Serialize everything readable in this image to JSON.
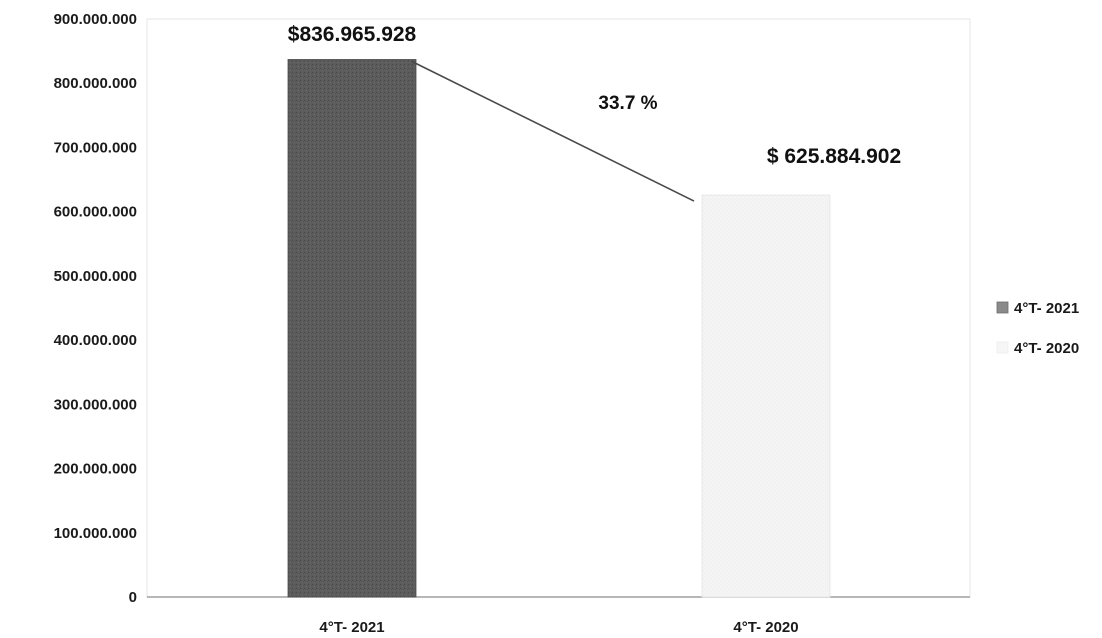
{
  "chart_data": {
    "type": "bar",
    "categories": [
      "4°T- 2021",
      "4°T- 2020"
    ],
    "values": [
      836965928,
      625884902
    ],
    "data_labels": [
      "$836.965.928",
      "$ 625.884.902"
    ],
    "y_ticks": [
      "0",
      "100.000.000",
      "200.000.000",
      "300.000.000",
      "400.000.000",
      "500.000.000",
      "600.000.000",
      "700.000.000",
      "800.000.000",
      "900.000.000"
    ],
    "ylim": [
      0,
      900000000
    ],
    "annotation": {
      "text": "33.7 %",
      "type": "connector-line",
      "from_category": "4°T- 2021",
      "to_category": "4°T- 2020"
    },
    "legend": {
      "placement": "right",
      "entries": [
        {
          "label": "4°T- 2021",
          "color": "#5a5a5a"
        },
        {
          "label": "4°T- 2020",
          "color": "#f3f3f3"
        }
      ]
    },
    "colors": [
      "#5a5a5a",
      "#f3f3f3"
    ],
    "grid": false,
    "title": "",
    "xlabel": "",
    "ylabel": ""
  }
}
